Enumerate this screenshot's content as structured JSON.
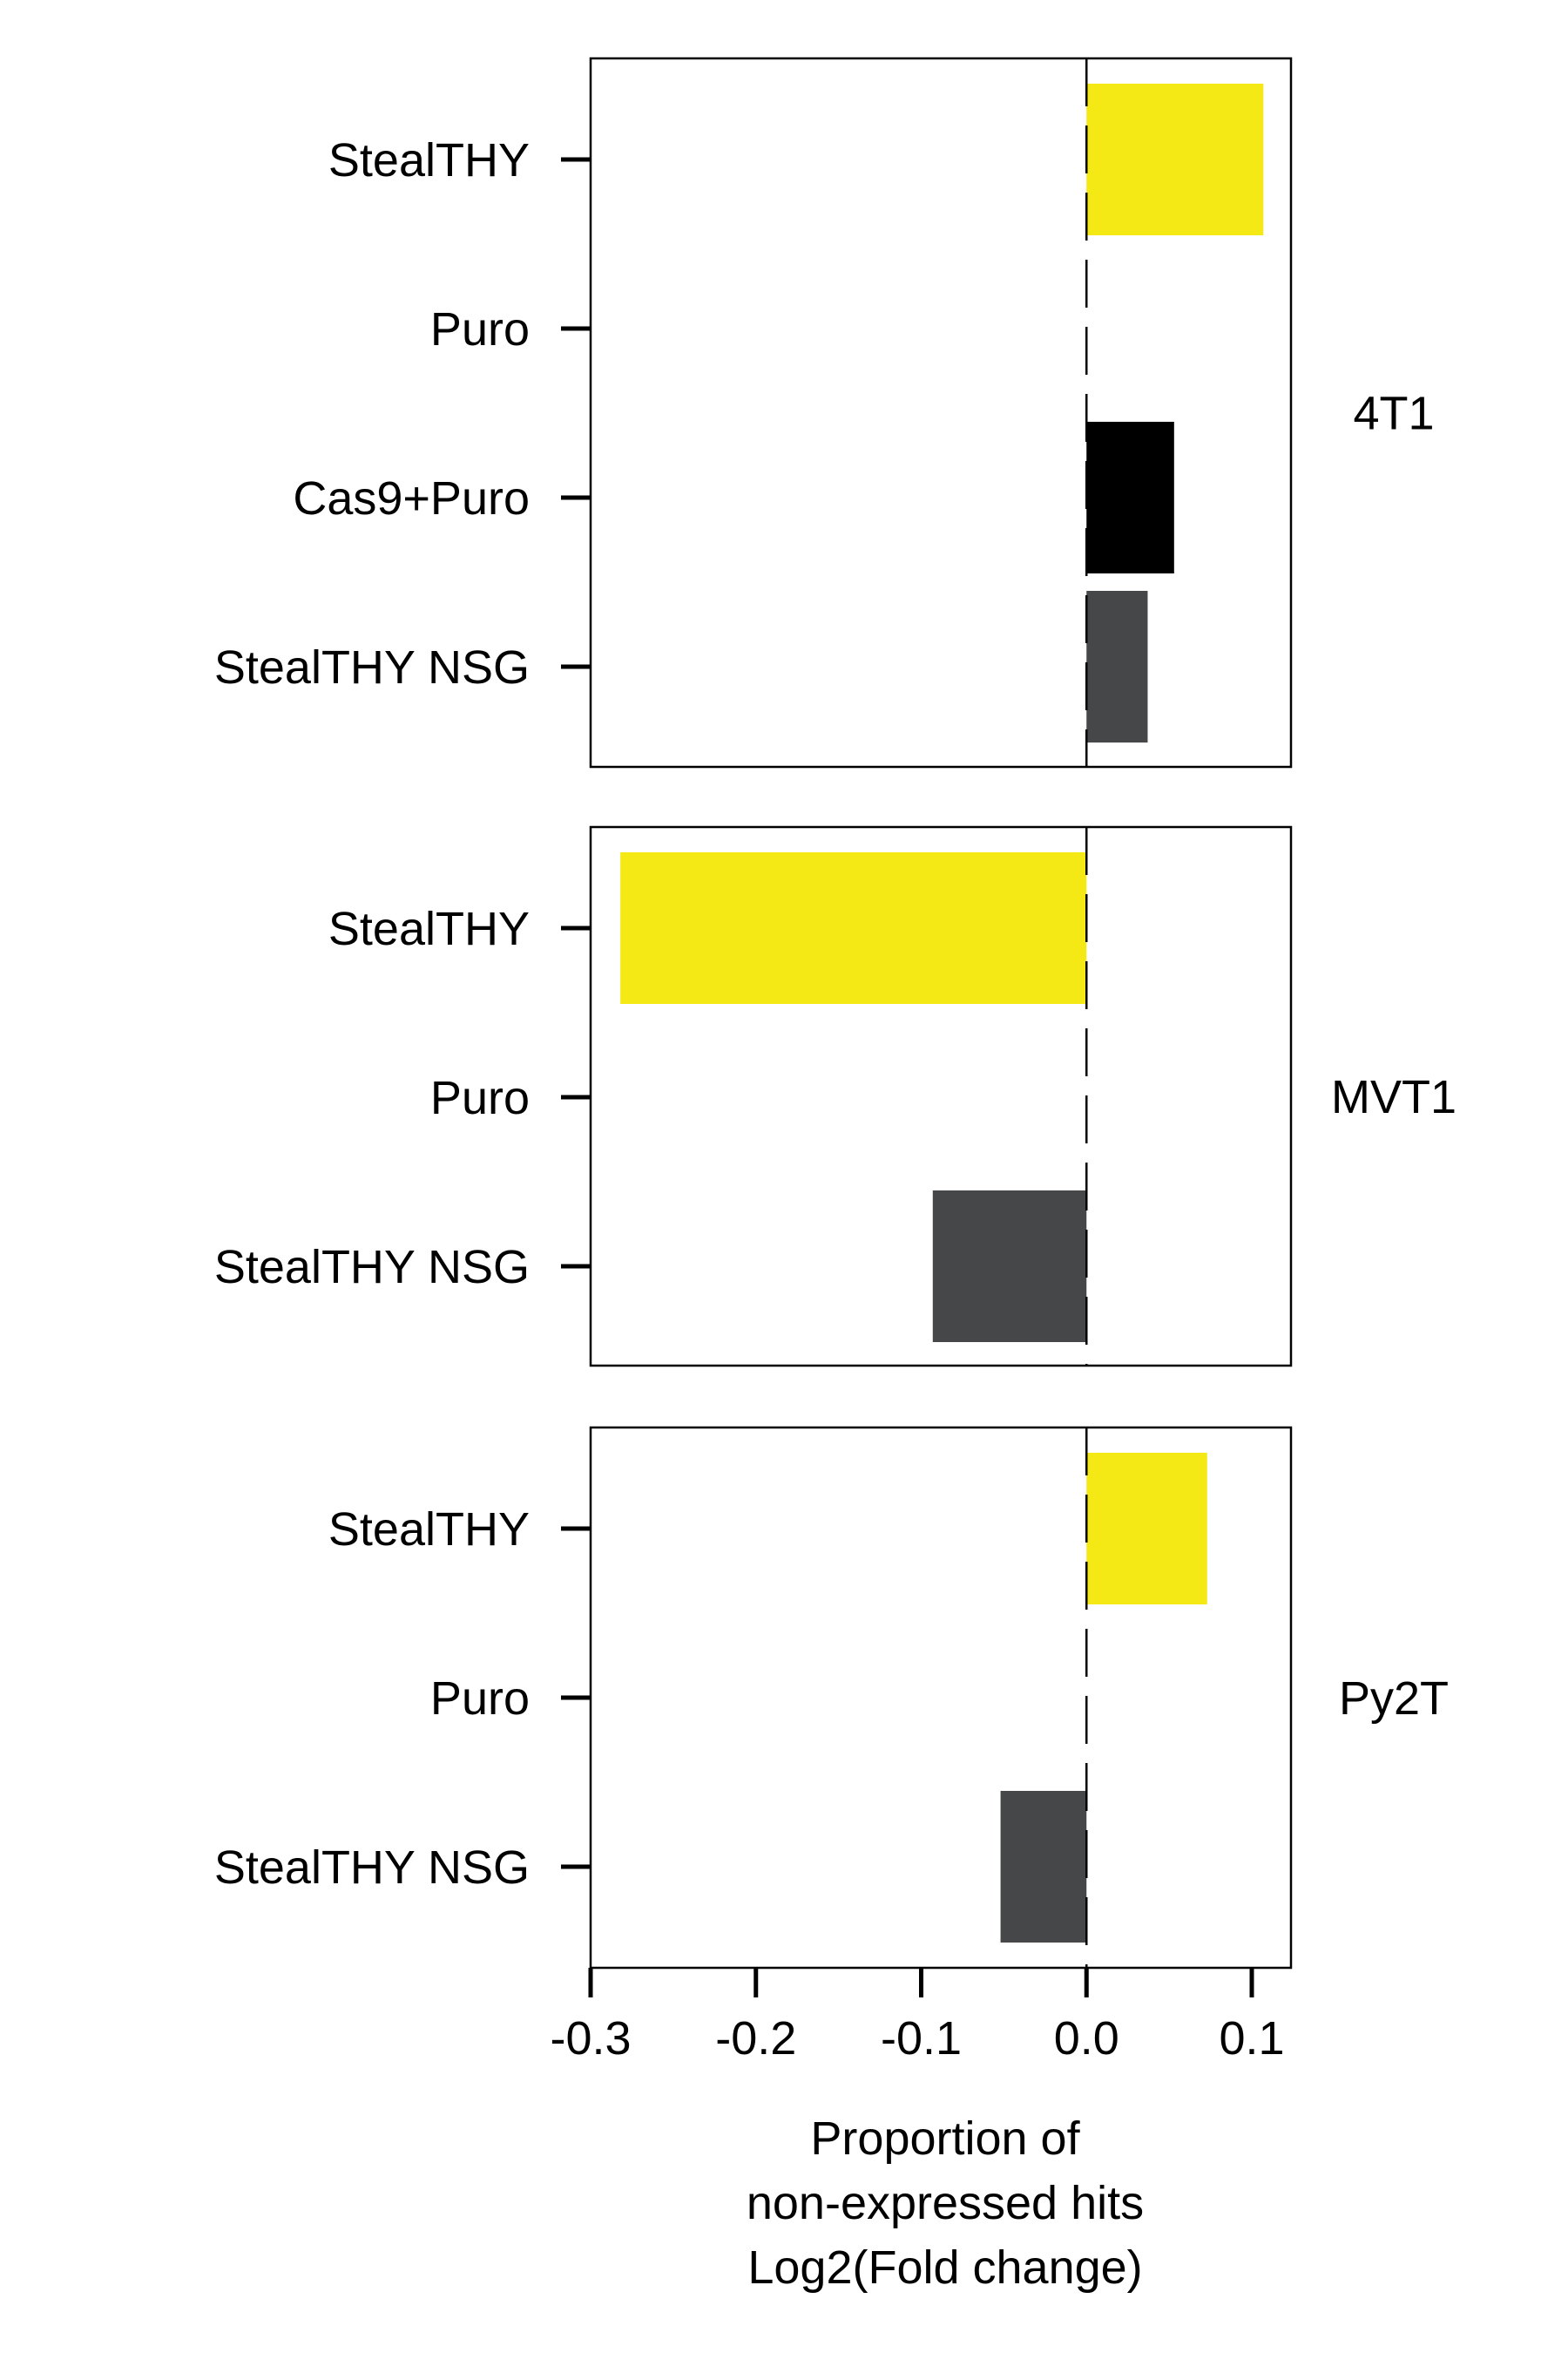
{
  "chart_data": {
    "type": "bar",
    "orientation": "horizontal",
    "xlabel_lines": [
      "Proportion of",
      "non-expressed hits",
      "Log2(Fold change)"
    ],
    "xlim": [
      -0.3,
      0.12
    ],
    "xticks": [
      -0.3,
      -0.2,
      -0.1,
      0.0,
      0.1
    ],
    "xtick_labels": [
      "-0.3",
      "-0.2",
      "-0.1",
      "0.0",
      "0.1"
    ],
    "reference_line": 0.0,
    "colors": {
      "StealTHY": "#f4e914",
      "Cas9+Puro": "#000000",
      "StealTHY NSG": "#464749"
    },
    "panels": [
      {
        "label": "4T1",
        "categories": [
          "StealTHY",
          "Puro",
          "Cas9+Puro",
          "StealTHY NSG"
        ],
        "values": [
          0.107,
          0.0,
          0.053,
          0.037
        ]
      },
      {
        "label": "MVT1",
        "categories": [
          "StealTHY",
          "Puro",
          "StealTHY NSG"
        ],
        "values": [
          -0.282,
          0.0,
          -0.093
        ]
      },
      {
        "label": "Py2T",
        "categories": [
          "StealTHY",
          "Puro",
          "StealTHY NSG"
        ],
        "values": [
          0.073,
          0.0,
          -0.052
        ]
      }
    ]
  }
}
